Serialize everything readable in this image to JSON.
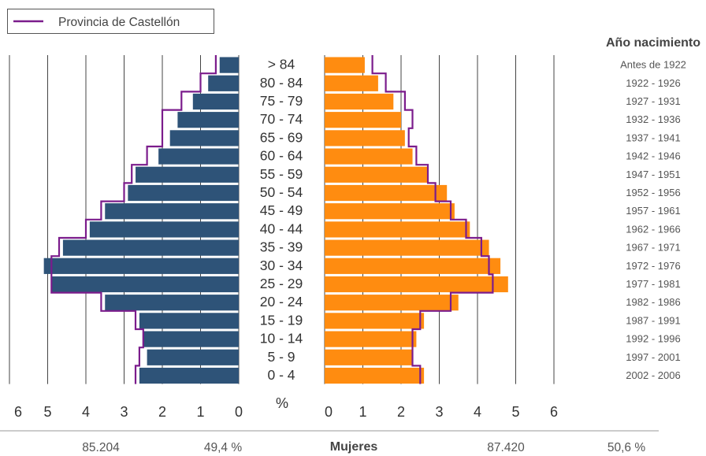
{
  "chart_data": {
    "type": "bar",
    "orientation": "population-pyramid",
    "legend": {
      "label": "Provincia de Castellón",
      "position": "top-left"
    },
    "age_groups": [
      "0 - 4",
      "5 - 9",
      "10 - 14",
      "15 - 19",
      "20 - 24",
      "25 - 29",
      "30 - 34",
      "35 - 39",
      "40 - 44",
      "45 - 49",
      "50 - 54",
      "55 - 59",
      "60 - 64",
      "65 - 69",
      "70 - 74",
      "75 - 79",
      "80 - 84",
      "> 84"
    ],
    "birth_year_title": "Año nacimiento",
    "birth_years": [
      "2002 - 2006",
      "1997 - 2001",
      "1992 - 1996",
      "1987 - 1991",
      "1982 - 1986",
      "1977 - 1981",
      "1972 - 1976",
      "1967 - 1971",
      "1962 - 1966",
      "1957 - 1961",
      "1952 - 1956",
      "1947 - 1951",
      "1942 - 1946",
      "1937 - 1941",
      "1932 - 1936",
      "1927 - 1931",
      "1922 - 1926",
      "Antes de 1922"
    ],
    "center_unit": "%",
    "x_ticks_left": [
      "6",
      "5",
      "4",
      "3",
      "2",
      "1",
      "0"
    ],
    "x_ticks_right": [
      "0",
      "1",
      "2",
      "3",
      "4",
      "5",
      "6"
    ],
    "xlim": [
      0,
      6
    ],
    "grid": true,
    "series": [
      {
        "side": "left",
        "color": "#2e5378",
        "values": [
          2.6,
          2.4,
          2.5,
          2.6,
          3.5,
          4.9,
          5.1,
          4.6,
          3.9,
          3.5,
          2.9,
          2.7,
          2.1,
          1.8,
          1.6,
          1.2,
          0.8,
          0.5
        ]
      },
      {
        "side": "right",
        "color": "#ff8c10",
        "values": [
          2.6,
          2.3,
          2.4,
          2.6,
          3.5,
          4.8,
          4.6,
          4.3,
          3.8,
          3.4,
          3.2,
          2.7,
          2.3,
          2.1,
          2.0,
          1.8,
          1.4,
          1.05
        ]
      },
      {
        "name": "Provincia de Castellón",
        "side": "left",
        "color": "#7b1c8c",
        "kind": "outline",
        "values": [
          2.7,
          2.6,
          2.5,
          2.7,
          3.6,
          4.9,
          4.9,
          4.7,
          4.0,
          3.6,
          3.0,
          2.8,
          2.4,
          2.0,
          2.0,
          1.5,
          1.0,
          0.6
        ]
      },
      {
        "name": "Provincia de Castellón",
        "side": "right",
        "color": "#7b1c8c",
        "kind": "outline",
        "values": [
          2.5,
          2.3,
          2.3,
          2.5,
          3.3,
          4.4,
          4.3,
          4.1,
          3.7,
          3.3,
          2.9,
          2.7,
          2.4,
          2.2,
          2.3,
          2.1,
          1.6,
          1.25
        ]
      }
    ]
  },
  "footer": {
    "men_count": "85.204",
    "men_pct": "49,4 %",
    "women_label": "Mujeres",
    "women_count": "87.420",
    "women_pct": "50,6 %"
  }
}
